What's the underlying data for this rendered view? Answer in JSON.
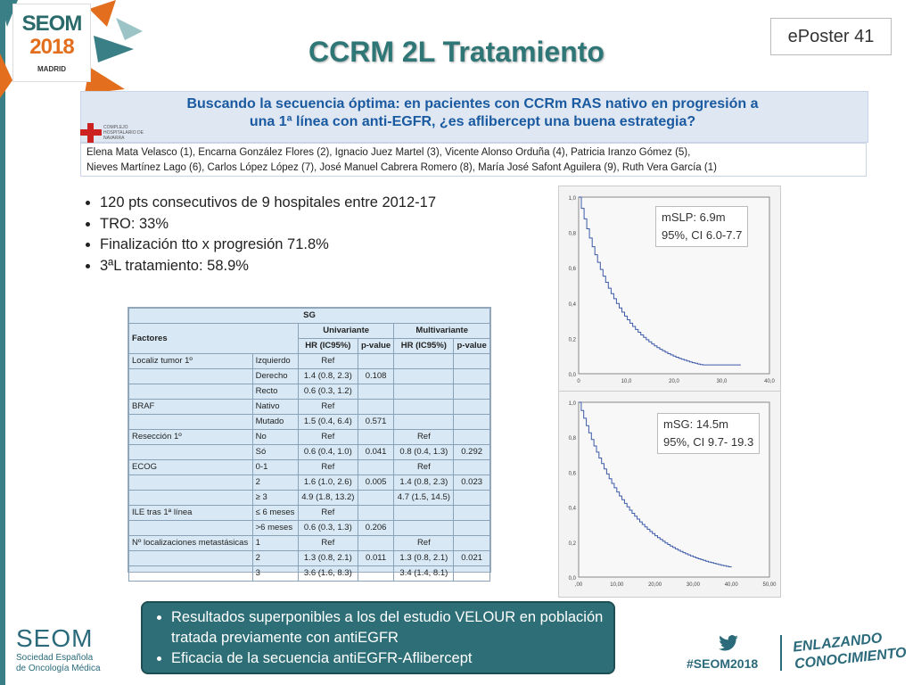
{
  "header": {
    "logo_brand": "SEOM",
    "logo_year": "2018",
    "logo_city": "MADRID",
    "title": "CCRM 2L Tratamiento",
    "eposter": "ePoster 41"
  },
  "banner": {
    "title_line1": "Buscando la secuencia óptima: en pacientes con CCRm RAS nativo en progresión a",
    "title_line2": "una 1ª línea con anti-EGFR, ¿es aflibercept una buena estrategia?",
    "hospital_name": "COMPLEJO HOSPITALARIO DE NAVARRA",
    "authors_line1": "Elena Mata Velasco (1), Encarna González Flores (2), Ignacio Juez Martel (3), Vicente Alonso Orduña (4), Patricia Iranzo Gómez (5),",
    "authors_line2": "Nieves Martínez Lago (6), Carlos López López (7), José Manuel Cabrera Romero (8), María José Safont Aguilera (9), Ruth Vera García (1)"
  },
  "bullets": [
    "120 pts consecutivos  de 9 hospitales entre 2012-17",
    "TRO: 33%",
    "Finalización tto x progresión 71.8%",
    "3ªL tratamiento: 58.9%"
  ],
  "table": {
    "title": "SG",
    "group_univ": "Univariante",
    "group_multi": "Multivariante",
    "col_factors": "Factores",
    "col_hr1": "HR (IC95%)",
    "col_p1": "p-value",
    "col_hr2": "HR (IC95%)",
    "col_p2": "p-value",
    "rows": [
      [
        "Localiz tumor 1º",
        "Izquierdo",
        "Ref",
        "",
        "",
        ""
      ],
      [
        "",
        "Derecho",
        "1.4 (0.8, 2.3)",
        "0.108",
        "",
        ""
      ],
      [
        "",
        "Recto",
        "0.6 (0.3, 1.2)",
        "",
        "",
        ""
      ],
      [
        "BRAF",
        "Nativo",
        "Ref",
        "",
        "",
        ""
      ],
      [
        "",
        "Mutado",
        "1.5 (0.4, 6.4)",
        "0.571",
        "",
        ""
      ],
      [
        "Resección 1º",
        "No",
        "Ref",
        "",
        "Ref",
        ""
      ],
      [
        "",
        "Só",
        "0.6 (0.4, 1.0)",
        "0.041",
        "0.8 (0.4, 1.3)",
        "0.292"
      ],
      [
        "ECOG",
        "0-1",
        "Ref",
        "",
        "Ref",
        ""
      ],
      [
        "",
        "2",
        "1.6 (1.0, 2.6)",
        "0.005",
        "1.4 (0.8, 2.3)",
        "0.023"
      ],
      [
        "",
        "≥ 3",
        "4.9 (1.8, 13.2)",
        "",
        "4.7 (1.5, 14.5)",
        ""
      ],
      [
        "ILE tras 1ª línea",
        "≤ 6 meses",
        "Ref",
        "",
        "",
        ""
      ],
      [
        "",
        ">6 meses",
        "0.6 (0.3, 1.3)",
        "0.206",
        "",
        ""
      ],
      [
        "Nº localizaciones metastásicas",
        "1",
        "Ref",
        "",
        "Ref",
        ""
      ],
      [
        "",
        "2",
        "1.3 (0.8, 2.1)",
        "0.011",
        "1.3 (0.8, 2.1)",
        "0.021"
      ],
      [
        "",
        "3",
        "3.6 (1.6, 8.3)",
        "",
        "3.4 (1.4, 8.1)",
        ""
      ]
    ]
  },
  "km1": {
    "label_line1": "mSLP: 6.9m",
    "label_line2": "95%, CI 6.0-7.7",
    "y_ticks": [
      "1,0",
      "0,8",
      "0,6",
      "0,4",
      "0,2",
      "0,0"
    ],
    "x_ticks": [
      "0",
      "10,0",
      "20,0",
      "30,0",
      "40,0"
    ]
  },
  "km2": {
    "label_line1": "mSG: 14.5m",
    "label_line2": "95%, CI 9.7- 19.3",
    "y_ticks": [
      "1,0",
      "0,8",
      "0,6",
      "0,4",
      "0,2",
      "0,0"
    ],
    "x_ticks": [
      ",00",
      "10,00",
      "20,00",
      "30,00",
      "40,00",
      "50,00"
    ]
  },
  "bottom_box": [
    "Resultados superponibles a los del estudio VELOUR en población tratada previamente con antiEGFR",
    "Eficacia de la secuencia antiEGFR-Aflibercept"
  ],
  "footer": {
    "seom_word": "SEOM",
    "seom_sub1": "Sociedad Española",
    "seom_sub2": "de Oncología Médica",
    "hashtag": "#SEOM2018",
    "enlazando1": "ENLAZANDO",
    "enlazando2": "CONOCIMIENTO"
  },
  "colors": {
    "accent_teal": "#2f7777",
    "accent_orange": "#e36f1e",
    "km_line": "#3c5aa8"
  }
}
